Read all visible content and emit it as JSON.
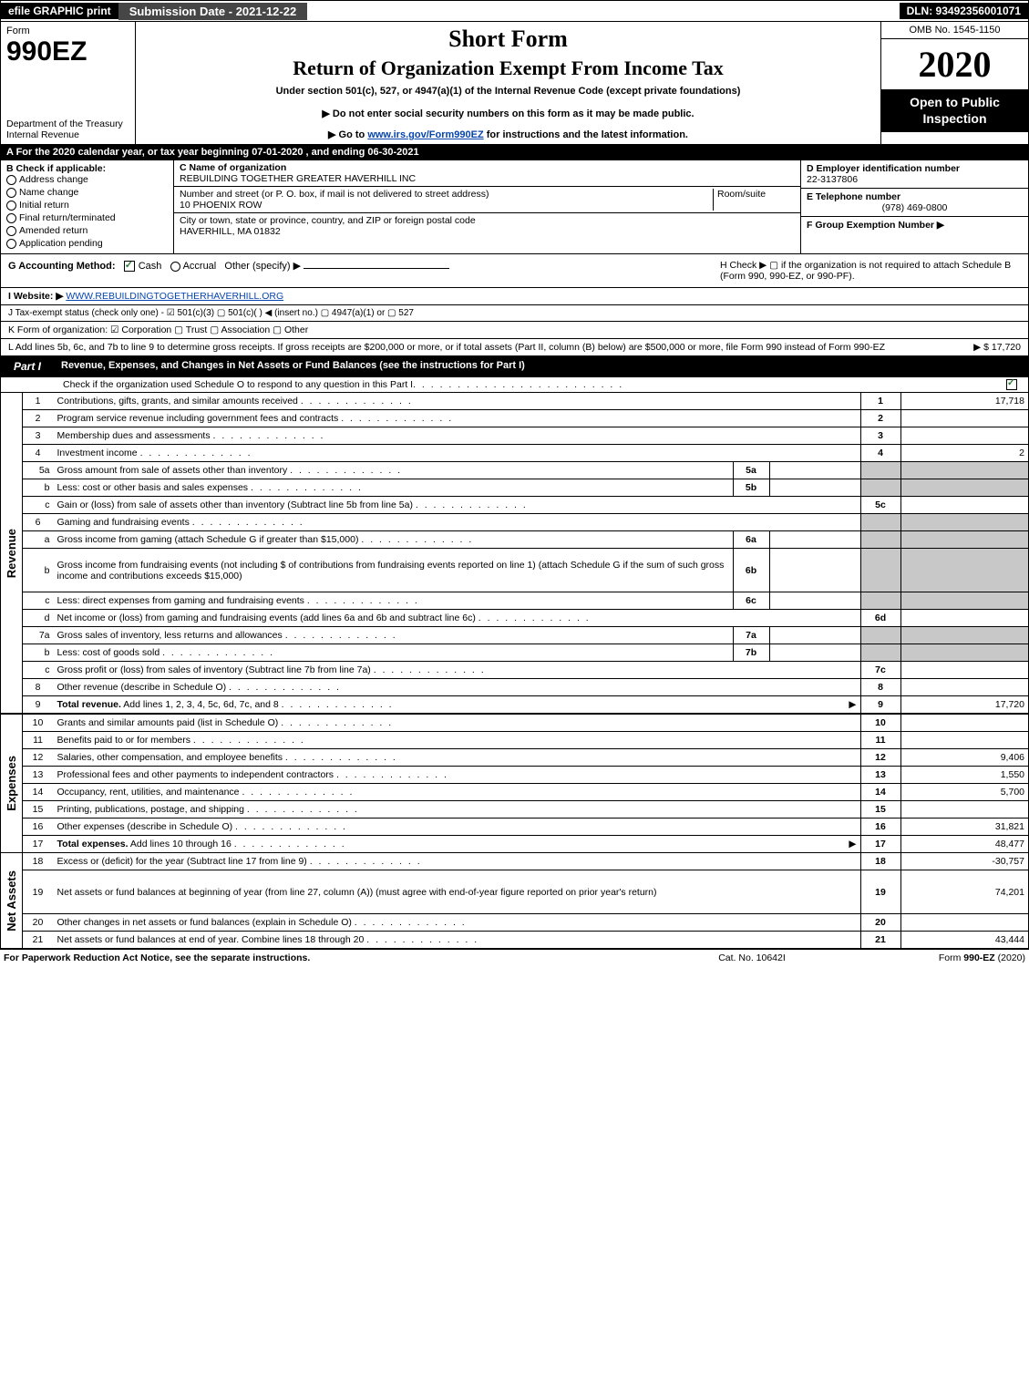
{
  "colors": {
    "black": "#000000",
    "white": "#ffffff",
    "dark_gray": "#464646",
    "shade": "#c8c8c8",
    "link": "#0645ad",
    "check_green": "#2e7d32"
  },
  "topbar": {
    "efile": "efile GRAPHIC print",
    "submission": "Submission Date - 2021-12-22",
    "dln": "DLN: 93492356001071"
  },
  "header": {
    "form_word": "Form",
    "form_num": "990EZ",
    "dept": "Department of the Treasury\nInternal Revenue",
    "short": "Short Form",
    "title": "Return of Organization Exempt From Income Tax",
    "sub": "Under section 501(c), 527, or 4947(a)(1) of the Internal Revenue Code (except private foundations)",
    "note1_prefix": "▶ Do not enter social security numbers on this form as it may be made public.",
    "note2_prefix": "▶ Go to ",
    "note2_link": "www.irs.gov/Form990EZ",
    "note2_suffix": " for instructions and the latest information.",
    "omb": "OMB No. 1545-1150",
    "year": "2020",
    "inspect": "Open to Public Inspection"
  },
  "rowA": "A  For the 2020 calendar year, or tax year beginning 07-01-2020 , and ending 06-30-2021",
  "sectionB": {
    "label": "B  Check if applicable:",
    "options": [
      "Address change",
      "Name change",
      "Initial return",
      "Final return/terminated",
      "Amended return",
      "Application pending"
    ]
  },
  "sectionC": {
    "name_label": "C Name of organization",
    "name": "REBUILDING TOGETHER GREATER HAVERHILL INC",
    "addr_label": "Number and street (or P. O. box, if mail is not delivered to street address)",
    "room_label": "Room/suite",
    "addr": "10 PHOENIX ROW",
    "city_label": "City or town, state or province, country, and ZIP or foreign postal code",
    "city": "HAVERHILL, MA  01832"
  },
  "sectionD": {
    "ein_label": "D Employer identification number",
    "ein": "22-3137806",
    "phone_label": "E Telephone number",
    "phone": "(978) 469-0800",
    "group_label": "F Group Exemption Number   ▶"
  },
  "rowG": {
    "label": "G Accounting Method:",
    "cash": "Cash",
    "accrual": "Accrual",
    "other": "Other (specify) ▶",
    "h_text": "H  Check ▶   ▢  if the organization is not required to attach Schedule B (Form 990, 990-EZ, or 990-PF)."
  },
  "rowI": {
    "label": "I Website: ▶",
    "value": "WWW.REBUILDINGTOGETHERHAVERHILL.ORG"
  },
  "rowJ": "J Tax-exempt status (check only one) -  ☑ 501(c)(3)  ▢ 501(c)(  ) ◀ (insert no.)  ▢ 4947(a)(1) or  ▢ 527",
  "rowK": "K Form of organization:   ☑ Corporation   ▢ Trust   ▢ Association   ▢ Other",
  "rowL": {
    "text": "L Add lines 5b, 6c, and 7b to line 9 to determine gross receipts. If gross receipts are $200,000 or more, or if total assets (Part II, column (B) below) are $500,000 or more, file Form 990 instead of Form 990-EZ",
    "amount": "▶ $ 17,720"
  },
  "partI": {
    "tab": "Part I",
    "title": "Revenue, Expenses, and Changes in Net Assets or Fund Balances (see the instructions for Part I)",
    "sub": "Check if the organization used Schedule O to respond to any question in this Part I",
    "sub_checked": true
  },
  "side_labels": {
    "revenue": "Revenue",
    "expenses": "Expenses",
    "netassets": "Net Assets"
  },
  "revenue_lines": [
    {
      "n": "1",
      "desc": "Contributions, gifts, grants, and similar amounts received",
      "num": "1",
      "amt": "17,718"
    },
    {
      "n": "2",
      "desc": "Program service revenue including government fees and contracts",
      "num": "2",
      "amt": ""
    },
    {
      "n": "3",
      "desc": "Membership dues and assessments",
      "num": "3",
      "amt": ""
    },
    {
      "n": "4",
      "desc": "Investment income",
      "num": "4",
      "amt": "2"
    },
    {
      "n": "5a",
      "desc": "Gross amount from sale of assets other than inventory",
      "mini": "5a",
      "shade_right": true
    },
    {
      "n": "b",
      "desc": "Less: cost or other basis and sales expenses",
      "mini": "5b",
      "shade_right": true
    },
    {
      "n": "c",
      "desc": "Gain or (loss) from sale of assets other than inventory (Subtract line 5b from line 5a)",
      "num": "5c",
      "amt": ""
    },
    {
      "n": "6",
      "desc": "Gaming and fundraising events",
      "shade_right": true,
      "no_num": true
    },
    {
      "n": "a",
      "desc": "Gross income from gaming (attach Schedule G if greater than $15,000)",
      "mini": "6a",
      "shade_right": true
    },
    {
      "n": "b",
      "desc": "Gross income from fundraising events (not including $                     of contributions from fundraising events reported on line 1) (attach Schedule G if the sum of such gross income and contributions exceeds $15,000)",
      "mini": "6b",
      "shade_right": true,
      "tall": true
    },
    {
      "n": "c",
      "desc": "Less: direct expenses from gaming and fundraising events",
      "mini": "6c",
      "shade_right": true
    },
    {
      "n": "d",
      "desc": "Net income or (loss) from gaming and fundraising events (add lines 6a and 6b and subtract line 6c)",
      "num": "6d",
      "amt": ""
    },
    {
      "n": "7a",
      "desc": "Gross sales of inventory, less returns and allowances",
      "mini": "7a",
      "shade_right": true
    },
    {
      "n": "b",
      "desc": "Less: cost of goods sold",
      "mini": "7b",
      "shade_right": true
    },
    {
      "n": "c",
      "desc": "Gross profit or (loss) from sales of inventory (Subtract line 7b from line 7a)",
      "num": "7c",
      "amt": ""
    },
    {
      "n": "8",
      "desc": "Other revenue (describe in Schedule O)",
      "num": "8",
      "amt": ""
    },
    {
      "n": "9",
      "desc": "Total revenue. Add lines 1, 2, 3, 4, 5c, 6d, 7c, and 8",
      "num": "9",
      "amt": "17,720",
      "bold": true,
      "arrow": true
    }
  ],
  "expense_lines": [
    {
      "n": "10",
      "desc": "Grants and similar amounts paid (list in Schedule O)",
      "num": "10",
      "amt": ""
    },
    {
      "n": "11",
      "desc": "Benefits paid to or for members",
      "num": "11",
      "amt": ""
    },
    {
      "n": "12",
      "desc": "Salaries, other compensation, and employee benefits",
      "num": "12",
      "amt": "9,406"
    },
    {
      "n": "13",
      "desc": "Professional fees and other payments to independent contractors",
      "num": "13",
      "amt": "1,550"
    },
    {
      "n": "14",
      "desc": "Occupancy, rent, utilities, and maintenance",
      "num": "14",
      "amt": "5,700"
    },
    {
      "n": "15",
      "desc": "Printing, publications, postage, and shipping",
      "num": "15",
      "amt": ""
    },
    {
      "n": "16",
      "desc": "Other expenses (describe in Schedule O)",
      "num": "16",
      "amt": "31,821"
    },
    {
      "n": "17",
      "desc": "Total expenses. Add lines 10 through 16",
      "num": "17",
      "amt": "48,477",
      "bold": true,
      "arrow": true
    }
  ],
  "netasset_lines": [
    {
      "n": "18",
      "desc": "Excess or (deficit) for the year (Subtract line 17 from line 9)",
      "num": "18",
      "amt": "-30,757"
    },
    {
      "n": "19",
      "desc": "Net assets or fund balances at beginning of year (from line 27, column (A)) (must agree with end-of-year figure reported on prior year's return)",
      "num": "19",
      "amt": "74,201",
      "tall": true
    },
    {
      "n": "20",
      "desc": "Other changes in net assets or fund balances (explain in Schedule O)",
      "num": "20",
      "amt": ""
    },
    {
      "n": "21",
      "desc": "Net assets or fund balances at end of year. Combine lines 18 through 20",
      "num": "21",
      "amt": "43,444"
    }
  ],
  "footer": {
    "left": "For Paperwork Reduction Act Notice, see the separate instructions.",
    "mid": "Cat. No. 10642I",
    "right_prefix": "Form ",
    "right_bold": "990-EZ",
    "right_suffix": " (2020)"
  }
}
